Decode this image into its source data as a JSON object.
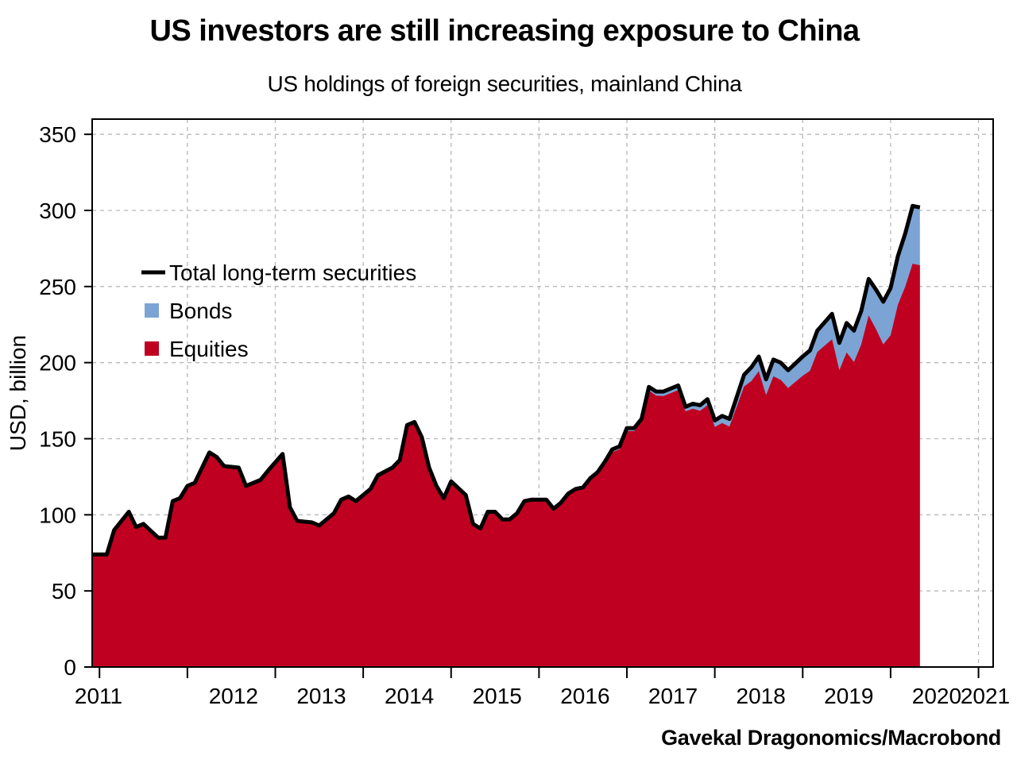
{
  "chart_data": {
    "type": "area",
    "title": "US investors are still increasing exposure to China",
    "subtitle": "US holdings of foreign securities, mainland China",
    "ylabel": "USD, billion",
    "xlabel": "",
    "source": "Gavekal Dragonomics/Macrobond",
    "ylim": [
      0,
      360
    ],
    "yticks": [
      0,
      50,
      100,
      150,
      200,
      250,
      300,
      350
    ],
    "xticks": [
      "2011",
      "2012",
      "2013",
      "2014",
      "2015",
      "2016",
      "2017",
      "2018",
      "2019",
      "2020",
      "2021"
    ],
    "x_start": "2010-12",
    "x_end": "2021-03",
    "grid": true,
    "legend_position": "upper-left",
    "colors": {
      "equities": "#c00020",
      "bonds": "#7ba4d4",
      "total": "#000000"
    },
    "series": [
      {
        "name": "Total long-term securities",
        "kind": "line",
        "points": [
          [
            "2010-12",
            74
          ],
          [
            "2011-02",
            74
          ],
          [
            "2011-03",
            90
          ],
          [
            "2011-05",
            102
          ],
          [
            "2011-06",
            92
          ],
          [
            "2011-07",
            94
          ],
          [
            "2011-09",
            85
          ],
          [
            "2011-10",
            85
          ],
          [
            "2011-11",
            109
          ],
          [
            "2011-12",
            111
          ],
          [
            "2012-01",
            119
          ],
          [
            "2012-02",
            121
          ],
          [
            "2012-04",
            141
          ],
          [
            "2012-05",
            138
          ],
          [
            "2012-06",
            132
          ],
          [
            "2012-08",
            131
          ],
          [
            "2012-09",
            119
          ],
          [
            "2012-11",
            123
          ],
          [
            "2012-12",
            129
          ],
          [
            "2013-02",
            140
          ],
          [
            "2013-03",
            105
          ],
          [
            "2013-04",
            96
          ],
          [
            "2013-06",
            95
          ],
          [
            "2013-07",
            93
          ],
          [
            "2013-09",
            101
          ],
          [
            "2013-10",
            110
          ],
          [
            "2013-11",
            112
          ],
          [
            "2013-12",
            109
          ],
          [
            "2014-02",
            117
          ],
          [
            "2014-03",
            126
          ],
          [
            "2014-05",
            131
          ],
          [
            "2014-06",
            136
          ],
          [
            "2014-07",
            159
          ],
          [
            "2014-08",
            161
          ],
          [
            "2014-09",
            151
          ],
          [
            "2014-10",
            131
          ],
          [
            "2014-11",
            119
          ],
          [
            "2014-12",
            111
          ],
          [
            "2015-01",
            122
          ],
          [
            "2015-03",
            113
          ],
          [
            "2015-04",
            94
          ],
          [
            "2015-05",
            91
          ],
          [
            "2015-06",
            102
          ],
          [
            "2015-07",
            102
          ],
          [
            "2015-08",
            97
          ],
          [
            "2015-09",
            97
          ],
          [
            "2015-10",
            101
          ],
          [
            "2015-11",
            109
          ],
          [
            "2015-12",
            110
          ],
          [
            "2016-02",
            110
          ],
          [
            "2016-03",
            104
          ],
          [
            "2016-04",
            108
          ],
          [
            "2016-05",
            114
          ],
          [
            "2016-06",
            117
          ],
          [
            "2016-07",
            118
          ],
          [
            "2016-08",
            124
          ],
          [
            "2016-09",
            128
          ],
          [
            "2016-10",
            135
          ],
          [
            "2016-11",
            143
          ],
          [
            "2016-12",
            145
          ],
          [
            "2017-01",
            157
          ],
          [
            "2017-02",
            157
          ],
          [
            "2017-03",
            163
          ],
          [
            "2017-04",
            184
          ],
          [
            "2017-05",
            181
          ],
          [
            "2017-06",
            181
          ],
          [
            "2017-08",
            185
          ],
          [
            "2017-09",
            171
          ],
          [
            "2017-10",
            173
          ],
          [
            "2017-11",
            172
          ],
          [
            "2017-12",
            176
          ],
          [
            "2018-01",
            162
          ],
          [
            "2018-02",
            165
          ],
          [
            "2018-03",
            163
          ],
          [
            "2018-05",
            192
          ],
          [
            "2018-06",
            197
          ],
          [
            "2018-07",
            204
          ],
          [
            "2018-08",
            189
          ],
          [
            "2018-09",
            202
          ],
          [
            "2018-10",
            200
          ],
          [
            "2018-11",
            195
          ],
          [
            "2019-01",
            204
          ],
          [
            "2019-02",
            208
          ],
          [
            "2019-03",
            221
          ],
          [
            "2019-05",
            232
          ],
          [
            "2019-06",
            213
          ],
          [
            "2019-07",
            226
          ],
          [
            "2019-08",
            221
          ],
          [
            "2019-09",
            234
          ],
          [
            "2019-10",
            255
          ],
          [
            "2019-11",
            248
          ],
          [
            "2019-12",
            240
          ],
          [
            "2020-01",
            249
          ],
          [
            "2020-02",
            270
          ],
          [
            "2020-03",
            285
          ],
          [
            "2020-04",
            303
          ],
          [
            "2020-05",
            302
          ]
        ]
      },
      {
        "name": "Bonds",
        "kind": "area",
        "points": [
          [
            "2010-12",
            0
          ],
          [
            "2015-12",
            0
          ],
          [
            "2016-06",
            1
          ],
          [
            "2016-12",
            2
          ],
          [
            "2017-03",
            2
          ],
          [
            "2017-06",
            3
          ],
          [
            "2017-09",
            3
          ],
          [
            "2017-12",
            4
          ],
          [
            "2018-03",
            5
          ],
          [
            "2018-06",
            9
          ],
          [
            "2018-09",
            11
          ],
          [
            "2018-12",
            12
          ],
          [
            "2019-03",
            14
          ],
          [
            "2019-06",
            18
          ],
          [
            "2019-09",
            22
          ],
          [
            "2019-12",
            28
          ],
          [
            "2020-01",
            31
          ],
          [
            "2020-02",
            32
          ],
          [
            "2020-03",
            35
          ],
          [
            "2020-04",
            38
          ],
          [
            "2020-05",
            38
          ]
        ]
      },
      {
        "name": "Equities",
        "kind": "area",
        "points": []
      }
    ]
  }
}
